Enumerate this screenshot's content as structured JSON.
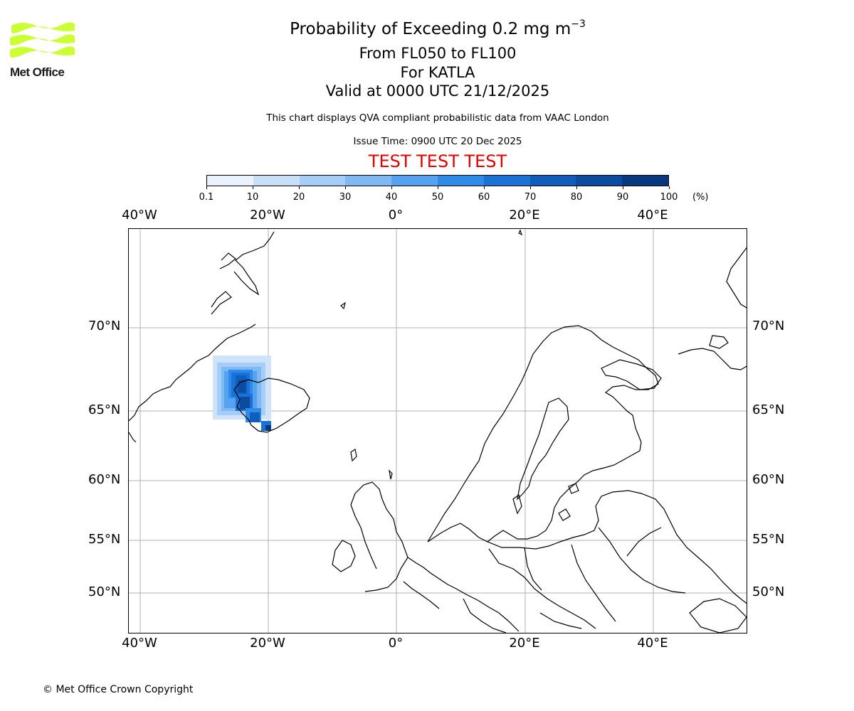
{
  "logo": {
    "text": "Met Office",
    "brand_color": "#ccff33"
  },
  "header": {
    "title_main": "Probability of Exceeding 0.2 mg m",
    "title_exp": "−3",
    "levels": "From FL050 to FL100",
    "volcano": "For KATLA",
    "valid": "Valid at 0000 UTC 21/12/2025",
    "disclaimer": "This chart displays QVA compliant probabilistic data from VAAC London",
    "issue": "Issue Time: 0900 UTC 20 Dec 2025",
    "test_banner": "TEST TEST TEST",
    "test_color": "#e00000"
  },
  "colorbar": {
    "ticks": [
      "0.1",
      "10",
      "20",
      "30",
      "40",
      "50",
      "60",
      "70",
      "80",
      "90",
      "100"
    ],
    "unit": "(%)",
    "colors": [
      "#eaf3fd",
      "#c8dffa",
      "#a5cdf7",
      "#7eb9f4",
      "#54a2f0",
      "#2f8be9",
      "#1a72d6",
      "#0f5dbd",
      "#0b4ba0",
      "#073880",
      "#042760"
    ]
  },
  "map": {
    "lon_labels": [
      "40°W",
      "20°W",
      "0°",
      "20°E",
      "40°E"
    ],
    "lat_labels": [
      "70°N",
      "65°N",
      "60°N",
      "55°N",
      "50°N"
    ],
    "projection": "Stereographic, Northern Europe and Iceland",
    "plume_source": "Katla, southern Iceland",
    "plume_max_probability_band": "80-90",
    "land": "white",
    "coastline": "black",
    "gridlines": "grey"
  },
  "footer": {
    "copyright": "© Met Office Crown Copyright"
  }
}
